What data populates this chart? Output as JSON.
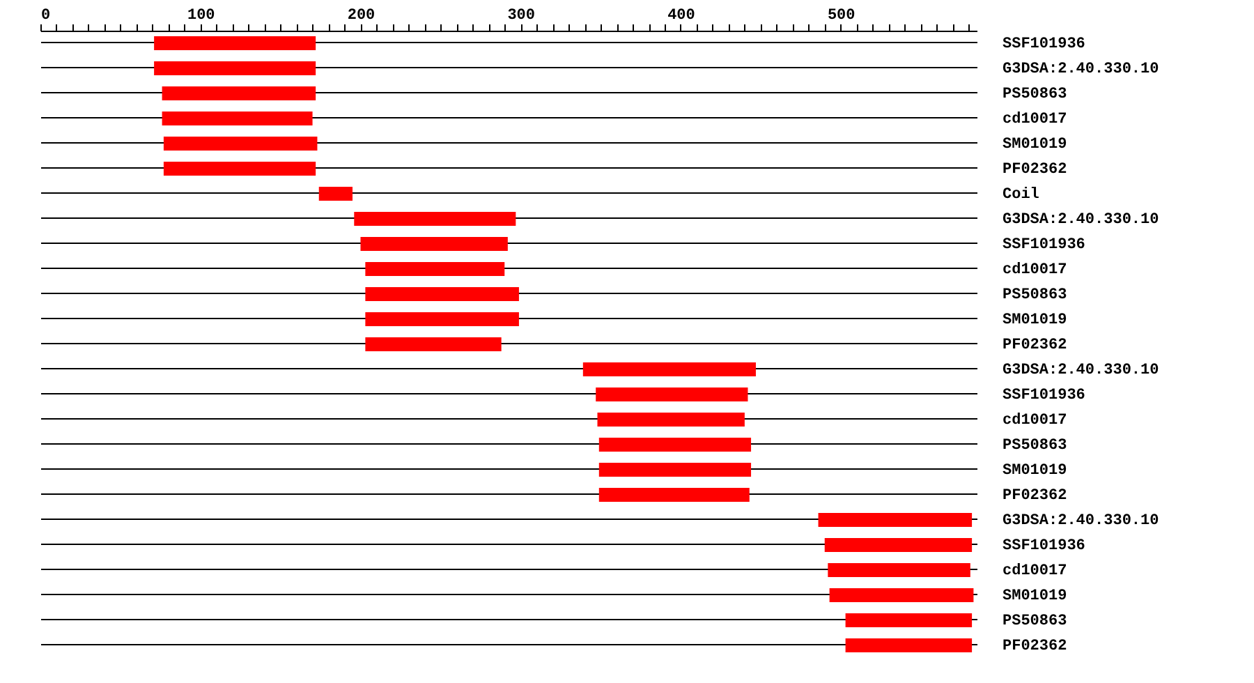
{
  "chart_data": {
    "type": "bar",
    "orientation": "horizontal",
    "color": "#ff0000",
    "categories": [
      "SSF101936",
      "G3DSA:2.40.330.10",
      "PS50863",
      "cd10017",
      "SM01019",
      "PF02362",
      "Coil",
      "G3DSA:2.40.330.10",
      "SSF101936",
      "cd10017",
      "PS50863",
      "SM01019",
      "PF02362",
      "G3DSA:2.40.330.10",
      "SSF101936",
      "cd10017",
      "PS50863",
      "SM01019",
      "PF02362",
      "G3DSA:2.40.330.10",
      "SSF101936",
      "cd10017",
      "SM01019",
      "PS50863",
      "PF02362"
    ],
    "base": [
      71,
      71,
      76,
      76,
      77,
      77,
      174,
      196,
      200,
      203,
      203,
      203,
      203,
      339,
      347,
      348,
      349,
      349,
      349,
      486,
      490,
      492,
      493,
      503,
      503
    ],
    "values": [
      101,
      101,
      96,
      94,
      96,
      95,
      21,
      101,
      92,
      87,
      96,
      96,
      85,
      108,
      95,
      92,
      95,
      95,
      94,
      96,
      92,
      89,
      90,
      79,
      79
    ],
    "xlim": [
      0,
      585
    ],
    "xticks": [
      0,
      {
        "value": 10,
        "label": null
      },
      {
        "value": 20,
        "label": null
      },
      {
        "value": 30,
        "label": null
      },
      {
        "value": 40,
        "label": null
      },
      {
        "value": 50,
        "label": null
      },
      {
        "value": 60,
        "label": null
      },
      {
        "value": 70,
        "label": null
      },
      {
        "value": 80,
        "label": null
      },
      {
        "value": 90,
        "label": null
      },
      100,
      {
        "value": 110,
        "label": null
      },
      {
        "value": 120,
        "label": null
      },
      {
        "value": 130,
        "label": null
      },
      {
        "value": 140,
        "label": null
      },
      {
        "value": 150,
        "label": null
      },
      {
        "value": 160,
        "label": null
      },
      {
        "value": 170,
        "label": null
      },
      {
        "value": 180,
        "label": null
      },
      {
        "value": 190,
        "label": null
      },
      200,
      {
        "value": 210,
        "label": null
      },
      {
        "value": 220,
        "label": null
      },
      {
        "value": 230,
        "label": null
      },
      {
        "value": 240,
        "label": null
      },
      {
        "value": 250,
        "label": null
      },
      {
        "value": 260,
        "label": null
      },
      {
        "value": 270,
        "label": null
      },
      {
        "value": 280,
        "label": null
      },
      {
        "value": 290,
        "label": null
      },
      300,
      {
        "value": 310,
        "label": null
      },
      {
        "value": 320,
        "label": null
      },
      {
        "value": 330,
        "label": null
      },
      {
        "value": 340,
        "label": null
      },
      {
        "value": 350,
        "label": null
      },
      {
        "value": 360,
        "label": null
      },
      {
        "value": 370,
        "label": null
      },
      {
        "value": 380,
        "label": null
      },
      {
        "value": 390,
        "label": null
      },
      400,
      {
        "value": 410,
        "label": null
      },
      {
        "value": 420,
        "label": null
      },
      {
        "value": 430,
        "label": null
      },
      {
        "value": 440,
        "label": null
      },
      {
        "value": 450,
        "label": null
      },
      {
        "value": 460,
        "label": null
      },
      {
        "value": 470,
        "label": null
      },
      {
        "value": 480,
        "label": null
      },
      {
        "value": 490,
        "label": null
      },
      500,
      {
        "value": 510,
        "label": null
      },
      {
        "value": 520,
        "label": null
      },
      {
        "value": 530,
        "label": null
      },
      {
        "value": 540,
        "label": null
      },
      {
        "value": 550,
        "label": null
      },
      {
        "value": 560,
        "label": null
      },
      {
        "value": 570,
        "label": null
      },
      {
        "value": 580,
        "label": null
      }
    ],
    "grid": "y"
  }
}
